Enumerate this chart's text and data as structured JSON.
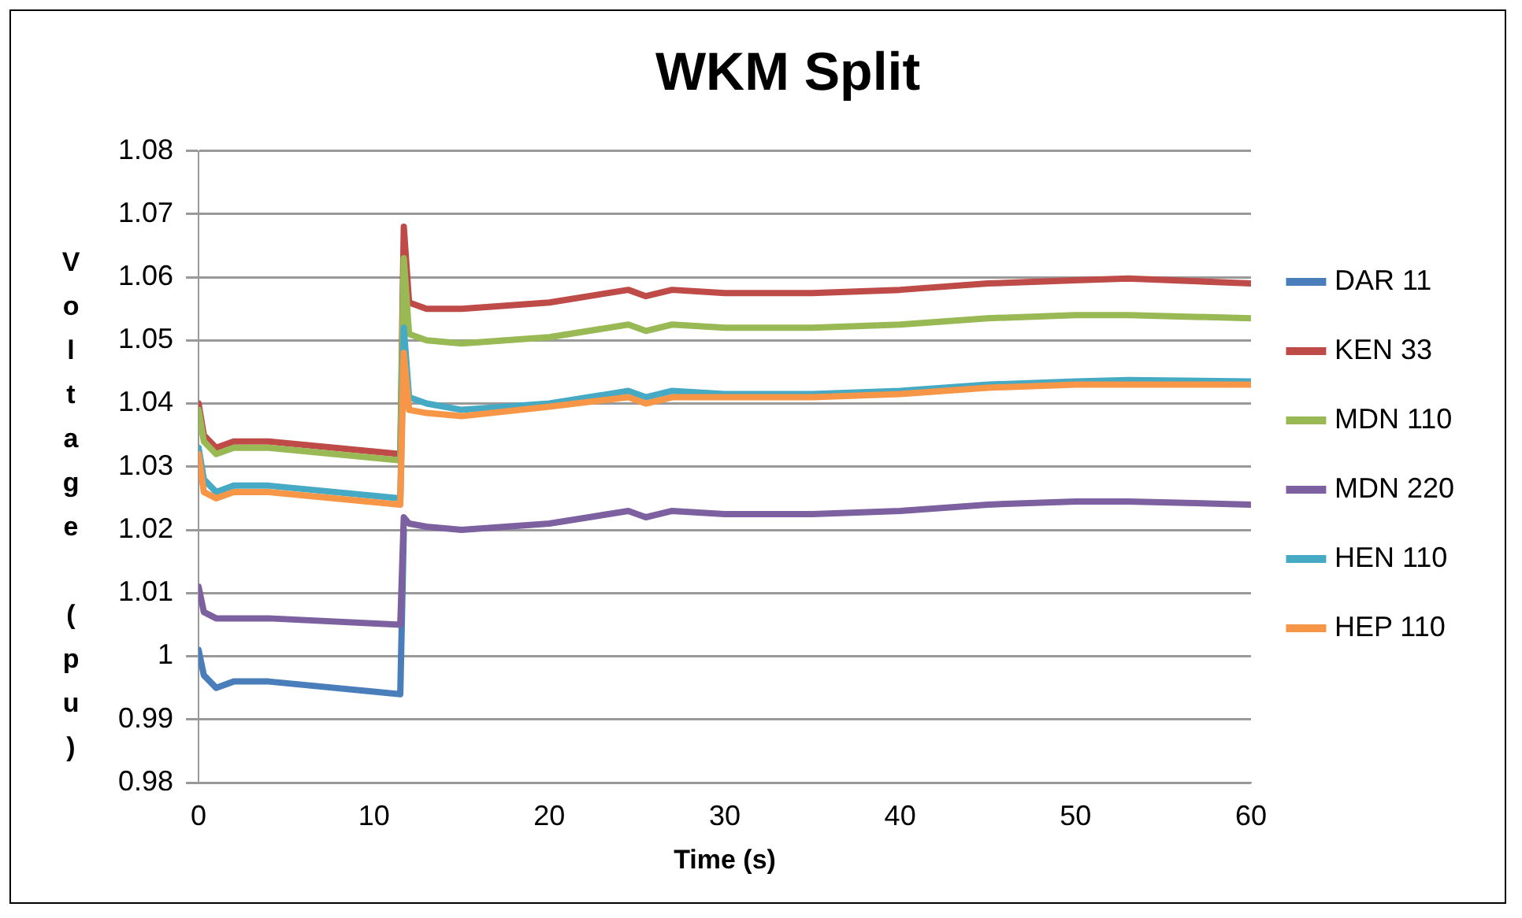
{
  "chart_data": {
    "type": "line",
    "title": "WKM Split",
    "xlabel": "Time (s)",
    "ylabel": "Voltage (pu)",
    "x": [
      0,
      0.3,
      1,
      2,
      4,
      11.5,
      11.7,
      12,
      13,
      15,
      20,
      24.5,
      25.5,
      27,
      30,
      35,
      40,
      45,
      50,
      53,
      60
    ],
    "series": [
      {
        "name": "DAR 11",
        "color": "#4a7ebb",
        "values": [
          1.001,
          0.997,
          0.995,
          0.996,
          0.996,
          0.994,
          1.02,
          null,
          null,
          null,
          null,
          null,
          null,
          null,
          null,
          null,
          null,
          null,
          null,
          null,
          null
        ]
      },
      {
        "name": "KEN 33",
        "color": "#be4b48",
        "values": [
          1.04,
          1.035,
          1.033,
          1.034,
          1.034,
          1.032,
          1.068,
          1.056,
          1.055,
          1.055,
          1.056,
          1.058,
          1.057,
          1.058,
          1.0575,
          1.0575,
          1.058,
          1.059,
          1.0595,
          1.0598,
          1.059
        ]
      },
      {
        "name": "MDN 110",
        "color": "#98b954",
        "values": [
          1.039,
          1.034,
          1.032,
          1.033,
          1.033,
          1.031,
          1.063,
          1.051,
          1.05,
          1.0495,
          1.0505,
          1.0525,
          1.0515,
          1.0525,
          1.052,
          1.052,
          1.0525,
          1.0535,
          1.054,
          1.054,
          1.0535
        ]
      },
      {
        "name": "MDN 220",
        "color": "#7d60a0",
        "values": [
          1.011,
          1.007,
          1.006,
          1.006,
          1.006,
          1.005,
          1.022,
          1.021,
          1.0205,
          1.02,
          1.021,
          1.023,
          1.022,
          1.023,
          1.0225,
          1.0225,
          1.023,
          1.024,
          1.0245,
          1.0245,
          1.024
        ]
      },
      {
        "name": "HEN 110",
        "color": "#46aac5",
        "values": [
          1.033,
          1.028,
          1.026,
          1.027,
          1.027,
          1.025,
          1.052,
          1.041,
          1.04,
          1.039,
          1.04,
          1.042,
          1.041,
          1.042,
          1.0415,
          1.0415,
          1.042,
          1.043,
          1.0435,
          1.0437,
          1.0435
        ]
      },
      {
        "name": "HEP 110",
        "color": "#f79646",
        "values": [
          1.032,
          1.026,
          1.025,
          1.026,
          1.026,
          1.024,
          1.048,
          1.039,
          1.0385,
          1.038,
          1.0395,
          1.041,
          1.04,
          1.041,
          1.041,
          1.041,
          1.0415,
          1.0425,
          1.043,
          1.043,
          1.043
        ]
      }
    ],
    "xlim": [
      0,
      60
    ],
    "xticks": [
      0,
      10,
      20,
      30,
      40,
      50,
      60
    ],
    "ylim": [
      0.98,
      1.08
    ],
    "yticks": [
      0.98,
      0.99,
      1,
      1.01,
      1.02,
      1.03,
      1.04,
      1.05,
      1.06,
      1.07,
      1.08
    ],
    "grid": "y",
    "legend": "right",
    "marker": "none",
    "line_style": "solid"
  }
}
